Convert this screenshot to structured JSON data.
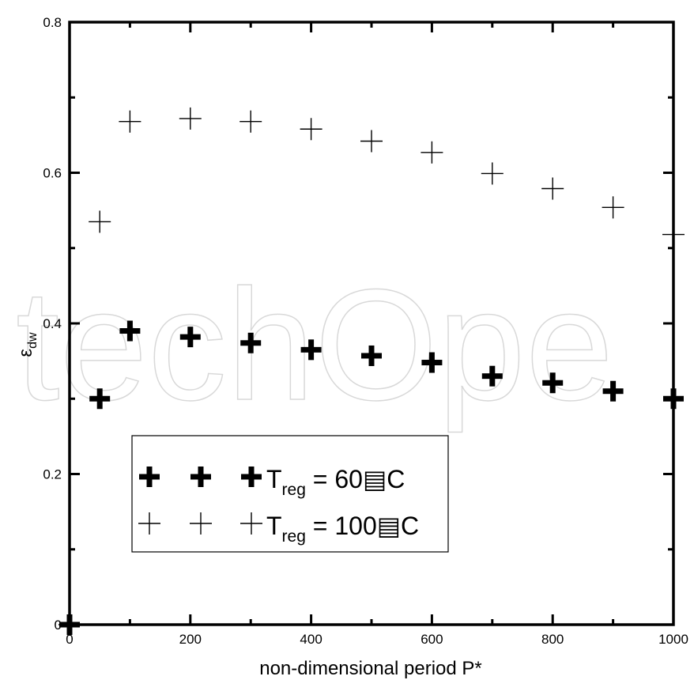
{
  "chart_data": {
    "type": "scatter",
    "xlabel": "non-dimensional period P*",
    "ylabel_main": "ε",
    "ylabel_sub": "dw",
    "xlim": [
      0,
      1000
    ],
    "ylim": [
      0,
      0.8
    ],
    "x_ticks": [
      0,
      200,
      400,
      600,
      800,
      1000
    ],
    "x_tick_labels": [
      "0",
      "200",
      "400",
      "600",
      "800",
      "1000"
    ],
    "y_ticks": [
      0,
      0.2,
      0.4,
      0.6,
      0.8
    ],
    "y_tick_labels": [
      "0",
      "0.2",
      "0.4",
      "0.6",
      "0.8"
    ],
    "grid": false,
    "legend_position": "bottom-left",
    "series": [
      {
        "name": "T",
        "legend_sub": "reg",
        "legend_suffix": " = 60▤C",
        "marker": "thick-plus",
        "x": [
          0,
          50,
          100,
          200,
          300,
          400,
          500,
          600,
          700,
          800,
          900,
          1000
        ],
        "y": [
          0,
          0.3,
          0.39,
          0.382,
          0.374,
          0.365,
          0.357,
          0.348,
          0.33,
          0.321,
          0.31,
          0.3
        ]
      },
      {
        "name": "T",
        "legend_sub": "reg",
        "legend_suffix": " = 100▤C",
        "marker": "thin-plus",
        "x": [
          0,
          50,
          100,
          200,
          300,
          400,
          500,
          600,
          700,
          800,
          900,
          1000
        ],
        "y": [
          0,
          0.535,
          0.668,
          0.672,
          0.668,
          0.658,
          0.642,
          0.627,
          0.599,
          0.579,
          0.554,
          0.518
        ]
      }
    ],
    "watermark": "techOpe"
  }
}
